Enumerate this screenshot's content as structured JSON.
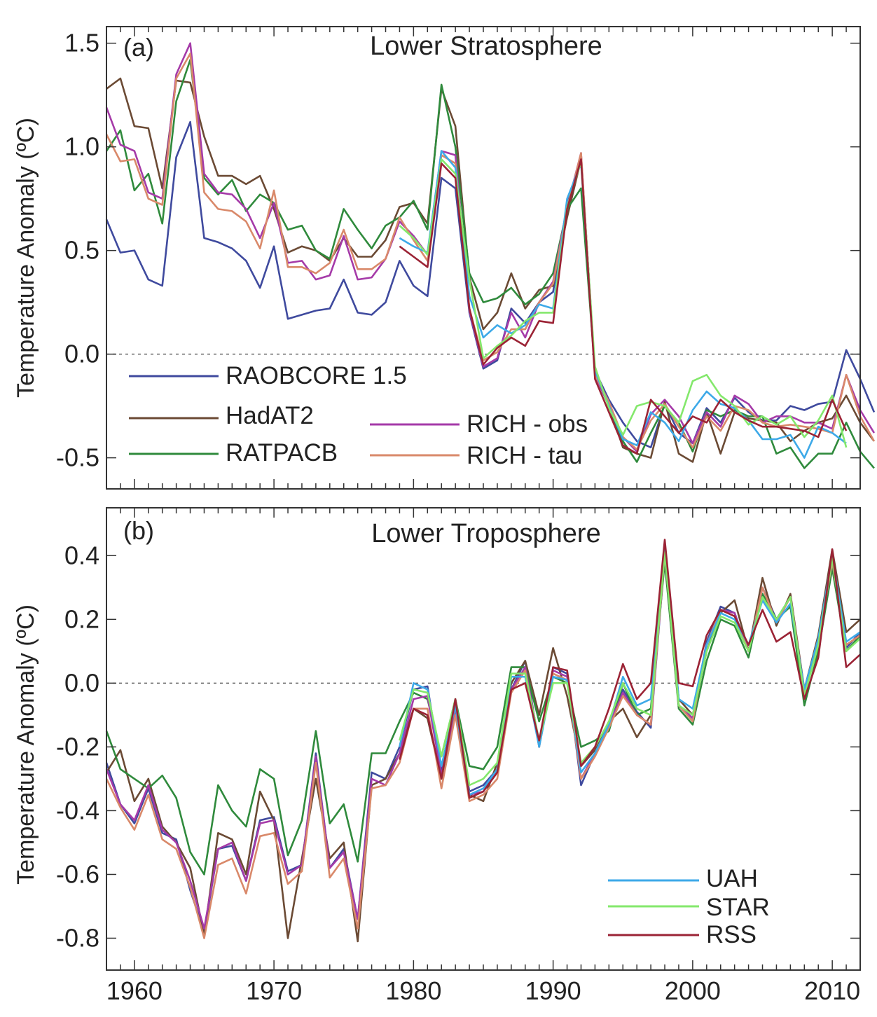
{
  "figure": {
    "colors": {
      "RAOBCORE 1.5": "#3f4a9e",
      "HadAT2": "#6b4a34",
      "RATPACB": "#2f8a3c",
      "RICH - obs": "#a53aa8",
      "RICH - tau": "#d9896a",
      "UAH": "#3da9e8",
      "STAR": "#84e86c",
      "RSS": "#9b2335"
    }
  },
  "chart_data": [
    {
      "type": "line",
      "tag": "(a)",
      "title": "Lower Stratosphere",
      "xlabel": "",
      "ylabel": "Temperature Anomaly (ºC)",
      "xlim": [
        1958,
        2012
      ],
      "ylim": [
        -0.65,
        1.58
      ],
      "yticks": [
        1.5,
        1.0,
        0.5,
        0.0,
        -0.5
      ],
      "ytick_labels": [
        "1.5",
        "1.0",
        "0.5",
        "0.0",
        "-0.5"
      ],
      "xticks": [
        1960,
        1970,
        1980,
        1990,
        2000,
        2010
      ],
      "xtick_labels": [
        "1960",
        "1970",
        "1980",
        "1990",
        "2000",
        "2010"
      ],
      "show_xtick_labels": false,
      "zero_line": true,
      "legend": [
        {
          "label": "RAOBCORE 1.5"
        },
        {
          "label": "HadAT2"
        },
        {
          "label": "RATPACB"
        },
        {
          "label": "RICH - obs"
        },
        {
          "label": "RICH - tau"
        }
      ],
      "series": [
        {
          "name": "RAOBCORE 1.5",
          "start": 1958,
          "values": [
            0.65,
            0.49,
            0.5,
            0.36,
            0.33,
            0.95,
            1.12,
            0.56,
            0.54,
            0.51,
            0.45,
            0.32,
            0.52,
            0.17,
            0.19,
            0.21,
            0.22,
            0.36,
            0.2,
            0.19,
            0.25,
            0.45,
            0.33,
            0.28,
            0.85,
            0.8,
            0.2,
            -0.07,
            -0.03,
            0.22,
            0.15,
            0.25,
            0.3,
            0.72,
            0.95,
            -0.08,
            -0.22,
            -0.33,
            -0.42,
            -0.45,
            -0.24,
            -0.38,
            -0.43,
            -0.26,
            -0.33,
            -0.21,
            -0.28,
            -0.32,
            -0.32,
            -0.25,
            -0.27,
            -0.24,
            -0.23,
            0.02,
            -0.12,
            -0.28
          ]
        },
        {
          "name": "HadAT2",
          "start": 1958,
          "values": [
            1.28,
            1.33,
            1.1,
            1.09,
            0.8,
            1.32,
            1.31,
            1.05,
            0.86,
            0.86,
            0.82,
            0.86,
            0.7,
            0.49,
            0.52,
            0.5,
            0.45,
            0.56,
            0.47,
            0.47,
            0.55,
            0.71,
            0.73,
            0.63,
            1.28,
            1.1,
            0.37,
            0.12,
            0.2,
            0.39,
            0.22,
            0.31,
            0.33,
            0.66,
            0.94,
            -0.1,
            -0.25,
            -0.45,
            -0.48,
            -0.5,
            -0.23,
            -0.48,
            -0.52,
            -0.28,
            -0.48,
            -0.28,
            -0.31,
            -0.32,
            -0.33,
            -0.42,
            -0.37,
            -0.33,
            -0.31,
            -0.2,
            -0.33,
            -0.42
          ]
        },
        {
          "name": "RATPACB",
          "start": 1958,
          "values": [
            0.98,
            1.08,
            0.79,
            0.87,
            0.63,
            1.22,
            1.42,
            0.85,
            0.77,
            0.84,
            0.69,
            0.77,
            0.73,
            0.6,
            0.62,
            0.5,
            0.46,
            0.7,
            0.6,
            0.51,
            0.62,
            0.66,
            0.74,
            0.6,
            1.3,
            1.0,
            0.39,
            0.25,
            0.27,
            0.32,
            0.24,
            0.29,
            0.39,
            0.7,
            0.8,
            -0.08,
            -0.25,
            -0.42,
            -0.52,
            -0.38,
            -0.25,
            -0.33,
            -0.47,
            -0.27,
            -0.3,
            -0.27,
            -0.3,
            -0.3,
            -0.48,
            -0.45,
            -0.55,
            -0.48,
            -0.48,
            -0.33,
            -0.47,
            -0.55
          ]
        },
        {
          "name": "RICH - obs",
          "start": 1958,
          "values": [
            1.19,
            1.01,
            0.98,
            0.78,
            0.75,
            1.35,
            1.5,
            0.87,
            0.78,
            0.77,
            0.7,
            0.56,
            0.73,
            0.44,
            0.45,
            0.36,
            0.38,
            0.57,
            0.36,
            0.37,
            0.46,
            0.64,
            0.57,
            0.48,
            0.98,
            0.96,
            0.21,
            -0.06,
            -0.02,
            0.2,
            0.08,
            0.25,
            0.35,
            0.71,
            0.97,
            -0.1,
            -0.25,
            -0.4,
            -0.47,
            -0.29,
            -0.22,
            -0.3,
            -0.43,
            -0.28,
            -0.35,
            -0.2,
            -0.24,
            -0.33,
            -0.3,
            -0.3,
            -0.33,
            -0.33,
            -0.36,
            -0.1,
            -0.27,
            -0.38
          ]
        },
        {
          "name": "RICH - tau",
          "start": 1958,
          "values": [
            1.06,
            0.93,
            0.94,
            0.75,
            0.72,
            1.33,
            1.45,
            0.78,
            0.7,
            0.69,
            0.64,
            0.51,
            0.79,
            0.42,
            0.42,
            0.39,
            0.44,
            0.6,
            0.41,
            0.41,
            0.46,
            0.66,
            0.55,
            0.45,
            0.96,
            0.92,
            0.22,
            -0.03,
            0.01,
            0.12,
            0.12,
            0.25,
            0.34,
            0.7,
            0.97,
            -0.1,
            -0.23,
            -0.4,
            -0.46,
            -0.32,
            -0.24,
            -0.35,
            -0.45,
            -0.3,
            -0.37,
            -0.25,
            -0.27,
            -0.33,
            -0.35,
            -0.34,
            -0.35,
            -0.36,
            -0.38,
            -0.1,
            -0.3,
            -0.42
          ]
        },
        {
          "name": "UAH",
          "start": 1979,
          "values": [
            0.56,
            0.52,
            0.49,
            0.98,
            0.9,
            0.28,
            0.08,
            0.14,
            0.1,
            0.14,
            0.24,
            0.22,
            0.75,
            0.92,
            -0.08,
            -0.25,
            -0.41,
            -0.44,
            -0.28,
            -0.33,
            -0.42,
            -0.27,
            -0.18,
            -0.24,
            -0.26,
            -0.32,
            -0.41,
            -0.41,
            -0.39,
            -0.5,
            -0.35,
            -0.38,
            -0.43
          ]
        },
        {
          "name": "STAR",
          "start": 1979,
          "values": [
            0.62,
            0.56,
            0.48,
            0.94,
            0.87,
            0.36,
            -0.02,
            0.04,
            0.09,
            0.16,
            0.2,
            0.2,
            0.71,
            0.93,
            -0.06,
            -0.26,
            -0.39,
            -0.25,
            -0.23,
            -0.25,
            -0.33,
            -0.13,
            -0.1,
            -0.2,
            -0.25,
            -0.34,
            -0.3,
            -0.34,
            -0.3,
            -0.4,
            -0.32,
            -0.2,
            -0.45
          ]
        },
        {
          "name": "RSS",
          "start": 1979,
          "values": [
            0.52,
            0.47,
            0.42,
            0.92,
            0.85,
            0.22,
            -0.05,
            0.03,
            0.08,
            0.04,
            0.16,
            0.15,
            0.7,
            0.94,
            -0.12,
            -0.28,
            -0.44,
            -0.48,
            -0.22,
            -0.3,
            -0.38,
            -0.3,
            -0.33,
            -0.22,
            -0.28,
            -0.32,
            -0.35,
            -0.35,
            -0.36,
            -0.37,
            -0.4,
            -0.22,
            -0.37
          ]
        }
      ]
    },
    {
      "type": "line",
      "tag": "(b)",
      "title": "Lower Troposphere",
      "xlabel": "",
      "ylabel": "Temperature Anomaly (ºC)",
      "xlim": [
        1958,
        2012
      ],
      "ylim": [
        -0.9,
        0.55
      ],
      "yticks": [
        0.4,
        0.2,
        0.0,
        -0.2,
        -0.4,
        -0.6,
        -0.8
      ],
      "ytick_labels": [
        "0.4",
        "0.2",
        "0.0",
        "-0.2",
        "-0.4",
        "-0.6",
        "-0.8"
      ],
      "xticks": [
        1960,
        1970,
        1980,
        1990,
        2000,
        2010
      ],
      "xtick_labels": [
        "1960",
        "1970",
        "1980",
        "1990",
        "2000",
        "2010"
      ],
      "show_xtick_labels": true,
      "zero_line": true,
      "legend": [
        {
          "label": "UAH"
        },
        {
          "label": "STAR"
        },
        {
          "label": "RSS"
        }
      ],
      "series": [
        {
          "name": "RAOBCORE 1.5",
          "start": 1958,
          "values": [
            -0.25,
            -0.38,
            -0.44,
            -0.33,
            -0.47,
            -0.49,
            -0.65,
            -0.78,
            -0.52,
            -0.51,
            -0.62,
            -0.43,
            -0.42,
            -0.59,
            -0.57,
            -0.22,
            -0.58,
            -0.52,
            -0.74,
            -0.28,
            -0.3,
            -0.2,
            -0.02,
            -0.01,
            -0.28,
            -0.07,
            -0.34,
            -0.32,
            -0.27,
            -0.02,
            0.07,
            -0.2,
            0.05,
            0.03,
            -0.32,
            -0.22,
            -0.13,
            -0.02,
            -0.09,
            -0.14,
            0.4,
            -0.07,
            -0.11,
            0.13,
            0.24,
            0.22,
            0.1,
            0.3,
            0.2,
            0.27,
            -0.03,
            0.13,
            0.38,
            0.11,
            0.16
          ]
        },
        {
          "name": "HadAT2",
          "start": 1958,
          "values": [
            -0.28,
            -0.21,
            -0.37,
            -0.3,
            -0.45,
            -0.5,
            -0.58,
            -0.79,
            -0.47,
            -0.49,
            -0.6,
            -0.34,
            -0.43,
            -0.8,
            -0.55,
            -0.3,
            -0.55,
            -0.5,
            -0.81,
            -0.32,
            -0.3,
            -0.22,
            -0.08,
            -0.11,
            -0.3,
            -0.08,
            -0.35,
            -0.37,
            -0.25,
            0.0,
            0.07,
            -0.1,
            0.11,
            -0.04,
            -0.26,
            -0.21,
            -0.12,
            -0.08,
            -0.17,
            -0.1,
            0.42,
            -0.05,
            -0.1,
            0.1,
            0.22,
            0.26,
            0.1,
            0.33,
            0.18,
            0.28,
            -0.02,
            0.15,
            0.42,
            0.16,
            0.2
          ]
        },
        {
          "name": "RATPACB",
          "start": 1958,
          "values": [
            -0.15,
            -0.27,
            -0.3,
            -0.33,
            -0.29,
            -0.36,
            -0.53,
            -0.6,
            -0.32,
            -0.4,
            -0.45,
            -0.27,
            -0.3,
            -0.54,
            -0.43,
            -0.15,
            -0.44,
            -0.38,
            -0.56,
            -0.22,
            -0.22,
            -0.12,
            -0.03,
            -0.05,
            -0.23,
            -0.05,
            -0.26,
            -0.27,
            -0.2,
            0.05,
            0.05,
            -0.12,
            0.02,
            0.0,
            -0.2,
            -0.18,
            -0.15,
            0.0,
            -0.1,
            -0.08,
            0.38,
            -0.08,
            -0.13,
            0.07,
            0.2,
            0.18,
            0.08,
            0.28,
            0.2,
            0.24,
            -0.07,
            0.1,
            0.36,
            0.1,
            0.15
          ]
        },
        {
          "name": "RICH - obs",
          "start": 1958,
          "values": [
            -0.27,
            -0.38,
            -0.43,
            -0.32,
            -0.46,
            -0.5,
            -0.62,
            -0.77,
            -0.52,
            -0.5,
            -0.62,
            -0.44,
            -0.43,
            -0.6,
            -0.57,
            -0.23,
            -0.58,
            -0.53,
            -0.74,
            -0.3,
            -0.32,
            -0.22,
            -0.05,
            -0.04,
            -0.29,
            -0.08,
            -0.35,
            -0.34,
            -0.27,
            -0.02,
            0.05,
            -0.19,
            0.04,
            0.02,
            -0.3,
            -0.22,
            -0.13,
            -0.03,
            -0.1,
            -0.13,
            0.41,
            -0.07,
            -0.11,
            0.12,
            0.23,
            0.22,
            0.1,
            0.3,
            0.19,
            0.27,
            -0.03,
            0.13,
            0.38,
            0.12,
            0.15
          ]
        },
        {
          "name": "RICH - tau",
          "start": 1958,
          "values": [
            -0.3,
            -0.39,
            -0.46,
            -0.35,
            -0.49,
            -0.52,
            -0.64,
            -0.8,
            -0.57,
            -0.55,
            -0.66,
            -0.48,
            -0.47,
            -0.63,
            -0.59,
            -0.25,
            -0.61,
            -0.55,
            -0.77,
            -0.33,
            -0.32,
            -0.25,
            -0.08,
            -0.08,
            -0.33,
            -0.1,
            -0.37,
            -0.35,
            -0.3,
            -0.03,
            0.04,
            -0.2,
            0.03,
            0.01,
            -0.3,
            -0.23,
            -0.14,
            -0.04,
            -0.1,
            -0.13,
            0.41,
            -0.07,
            -0.12,
            0.12,
            0.23,
            0.21,
            0.1,
            0.3,
            0.19,
            0.27,
            -0.03,
            0.13,
            0.38,
            0.12,
            0.15
          ]
        },
        {
          "name": "UAH",
          "start": 1979,
          "values": [
            -0.2,
            0.0,
            -0.02,
            -0.26,
            -0.07,
            -0.35,
            -0.33,
            -0.27,
            0.02,
            0.02,
            -0.2,
            0.02,
            0.01,
            -0.28,
            -0.22,
            -0.13,
            0.02,
            -0.07,
            -0.05,
            0.42,
            -0.05,
            -0.08,
            0.12,
            0.22,
            0.2,
            0.12,
            0.26,
            0.19,
            0.25,
            -0.02,
            0.14,
            0.4,
            0.13,
            0.16
          ]
        },
        {
          "name": "STAR",
          "start": 1979,
          "values": [
            -0.18,
            -0.02,
            -0.03,
            -0.23,
            -0.05,
            -0.32,
            -0.3,
            -0.25,
            0.03,
            0.03,
            -0.18,
            0.0,
            0.0,
            -0.25,
            -0.2,
            -0.12,
            0.0,
            -0.08,
            -0.1,
            0.41,
            -0.07,
            -0.1,
            0.1,
            0.21,
            0.19,
            0.1,
            0.27,
            0.2,
            0.27,
            -0.04,
            0.12,
            0.39,
            0.1,
            0.14
          ]
        },
        {
          "name": "RSS",
          "start": 1979,
          "values": [
            -0.24,
            -0.08,
            -0.1,
            -0.3,
            -0.05,
            -0.36,
            -0.34,
            -0.28,
            -0.02,
            0.0,
            -0.18,
            0.05,
            0.04,
            -0.26,
            -0.2,
            -0.08,
            0.06,
            -0.05,
            0.0,
            0.45,
            0.0,
            -0.01,
            0.15,
            0.23,
            0.21,
            0.12,
            0.23,
            0.13,
            0.16,
            -0.05,
            0.08,
            0.42,
            0.05,
            0.09
          ]
        }
      ]
    }
  ]
}
